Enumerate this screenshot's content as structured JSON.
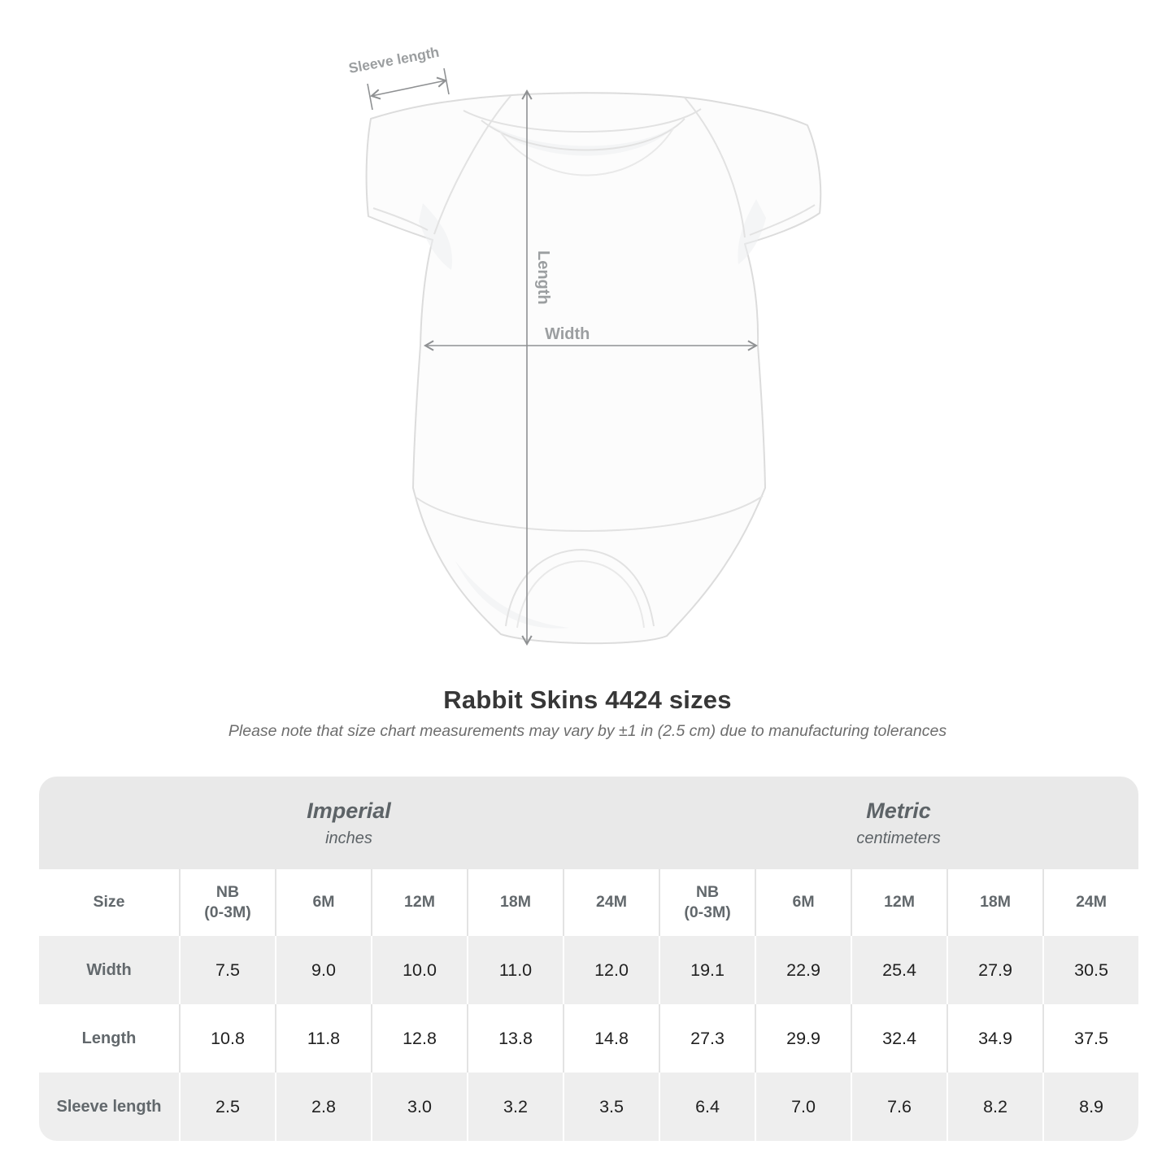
{
  "diagram": {
    "sleeve_length_label": "Sleeve length",
    "length_label": "Length",
    "width_label": "Width"
  },
  "heading": {
    "title": "Rabbit Skins 4424 sizes",
    "subtitle": "Please note that size chart measurements may vary by ±1 in (2.5 cm) due to manufacturing tolerances"
  },
  "chart_data": {
    "type": "table",
    "title": "Rabbit Skins 4424 sizes",
    "size_column_header": "Size",
    "groups": [
      {
        "label": "Imperial",
        "unit": "inches",
        "sizes": [
          "NB\n(0-3M)",
          "6M",
          "12M",
          "18M",
          "24M"
        ]
      },
      {
        "label": "Metric",
        "unit": "centimeters",
        "sizes": [
          "NB\n(0-3M)",
          "6M",
          "12M",
          "18M",
          "24M"
        ]
      }
    ],
    "rows": [
      {
        "label": "Width",
        "imperial": [
          "7.5",
          "9.0",
          "10.0",
          "11.0",
          "12.0"
        ],
        "metric": [
          "19.1",
          "22.9",
          "25.4",
          "27.9",
          "30.5"
        ]
      },
      {
        "label": "Length",
        "imperial": [
          "10.8",
          "11.8",
          "12.8",
          "13.8",
          "14.8"
        ],
        "metric": [
          "27.3",
          "29.9",
          "32.4",
          "34.9",
          "37.5"
        ]
      },
      {
        "label": "Sleeve length",
        "imperial": [
          "2.5",
          "2.8",
          "3.0",
          "3.2",
          "3.5"
        ],
        "metric": [
          "6.4",
          "7.0",
          "7.6",
          "8.2",
          "8.9"
        ]
      }
    ]
  },
  "colors": {
    "measurement_line": "#8f9193",
    "measurement_text": "#9b9ea0",
    "garment_outline": "#dcdcdc",
    "band_background": "#e9e9e9",
    "stripe_background": "#eeeeee",
    "header_text": "#62686c",
    "value_text": "#212121",
    "title_text": "#373737"
  }
}
